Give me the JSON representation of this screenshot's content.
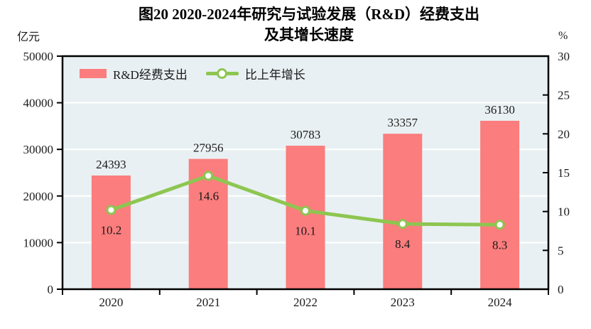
{
  "title": {
    "line1": "图20  2020-2024年研究与试验发展（R&D）经费支出",
    "line2": "及其增长速度"
  },
  "axes": {
    "left_unit": "亿元",
    "right_unit": "%"
  },
  "legend": [
    {
      "label": "R&D经费支出",
      "type": "bar"
    },
    {
      "label": "比上年增长",
      "type": "line"
    }
  ],
  "colors": {
    "bar": "#FB7D7D",
    "line": "#8DC651",
    "marker_fill": "#FFFFFF",
    "plot_bg": "#E9F0F3",
    "grid": "#FFFFFF",
    "border": "#000000",
    "text": "#1A1A1A"
  },
  "chart_data": {
    "type": "bar",
    "subtype": "bar-line combo, dual axis",
    "title": "图20 2020-2024年研究与试验发展（R&D）经费支出及其增长速度",
    "categories": [
      "2020",
      "2021",
      "2022",
      "2023",
      "2024"
    ],
    "series": [
      {
        "name": "R&D经费支出",
        "type": "bar",
        "axis": "left",
        "values": [
          24393,
          27956,
          30783,
          33357,
          36130
        ]
      },
      {
        "name": "比上年增长",
        "type": "line",
        "axis": "right",
        "values": [
          10.2,
          14.6,
          10.1,
          8.4,
          8.3
        ]
      }
    ],
    "left_axis": {
      "label": "亿元",
      "min": 0,
      "max": 50000,
      "ticks": [
        0,
        10000,
        20000,
        30000,
        40000,
        50000
      ]
    },
    "right_axis": {
      "label": "%",
      "min": 0,
      "max": 30,
      "ticks": [
        0,
        5,
        10,
        15,
        20,
        25,
        30
      ]
    },
    "grid": "horizontal white gridlines on light blue plot background",
    "legend_position": "top-left inside plot area"
  }
}
